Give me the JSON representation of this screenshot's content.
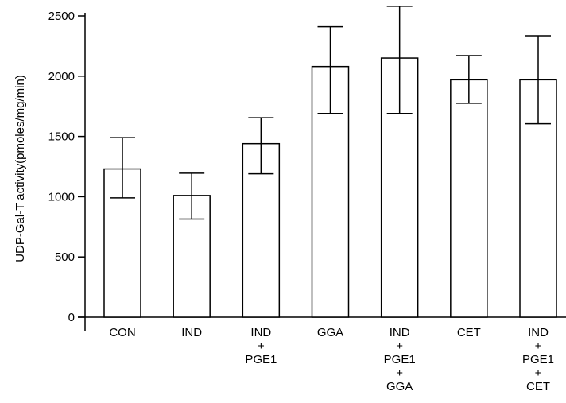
{
  "chart_data": {
    "type": "bar",
    "title": "",
    "xlabel": "",
    "ylabel": "UDP-Gal-T activity(pmoles/mg/min)",
    "ylim": [
      0,
      2500
    ],
    "yticks": [
      0,
      500,
      1000,
      1500,
      2000,
      2500
    ],
    "grid": false,
    "categories": [
      [
        "CON"
      ],
      [
        "IND"
      ],
      [
        "IND",
        "+",
        "PGE1"
      ],
      [
        "GGA"
      ],
      [
        "IND",
        "+",
        "PGE1",
        "+",
        "GGA"
      ],
      [
        "CET"
      ],
      [
        "IND",
        "+",
        "PGE1",
        "+",
        "CET"
      ]
    ],
    "values": [
      1230,
      1010,
      1440,
      2080,
      2150,
      1970,
      1970
    ],
    "error_low": [
      990,
      815,
      1190,
      1690,
      1690,
      1775,
      1605
    ],
    "error_high": [
      1490,
      1195,
      1655,
      2410,
      2580,
      2170,
      2335
    ],
    "colors": {
      "bar_fill": "#ffffff",
      "stroke": "#000000"
    }
  }
}
